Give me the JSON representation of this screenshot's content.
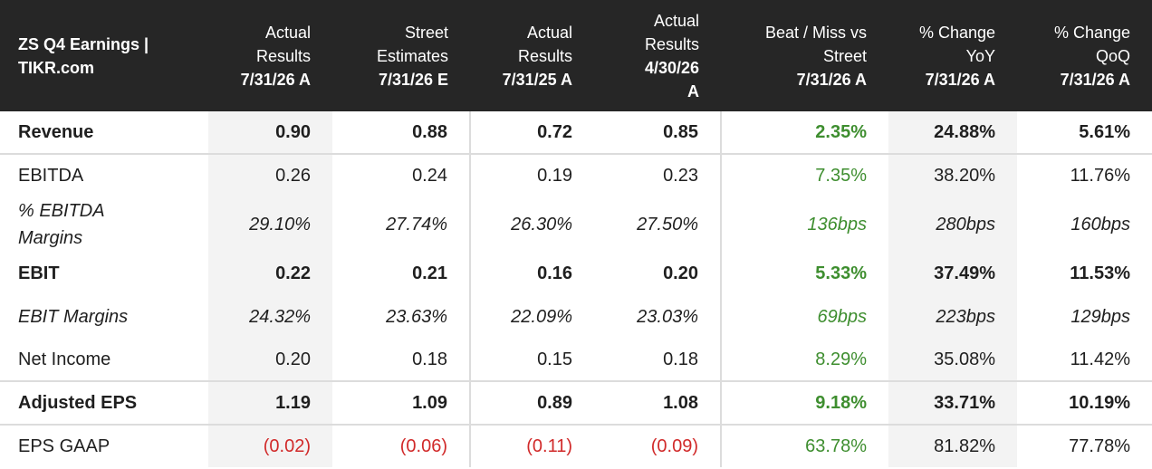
{
  "header": {
    "title_line1": "ZS Q4 Earnings |",
    "title_line2": "TIKR.com",
    "columns": [
      {
        "l1": "Actual",
        "l2": "Results",
        "date": "7/31/26 A"
      },
      {
        "l1": "Street",
        "l2": "Estimates",
        "date": "7/31/26 E"
      },
      {
        "l1": "Actual",
        "l2": "Results",
        "date": "7/31/25 A"
      },
      {
        "l1": "Actual",
        "l2": "Results",
        "date": "4/30/26",
        "date2": "A"
      },
      {
        "l1": "Beat / Miss vs",
        "l2": "Street",
        "date": "7/31/26 A"
      },
      {
        "l1": "% Change",
        "l2": "YoY",
        "date": "7/31/26 A"
      },
      {
        "l1": "% Change",
        "l2": "QoQ",
        "date": "7/31/26 A"
      }
    ]
  },
  "rows": [
    {
      "label": "Revenue",
      "values": [
        "0.90",
        "0.88",
        "0.72",
        "0.85",
        "2.35%",
        "24.88%",
        "5.61%"
      ]
    },
    {
      "label": "EBITDA",
      "values": [
        "0.26",
        "0.24",
        "0.19",
        "0.23",
        "7.35%",
        "38.20%",
        "11.76%"
      ]
    },
    {
      "label_l1": "% EBITDA",
      "label_l2": "Margins",
      "values": [
        "29.10%",
        "27.74%",
        "26.30%",
        "27.50%",
        "136bps",
        "280bps",
        "160bps"
      ]
    },
    {
      "label": "EBIT",
      "values": [
        "0.22",
        "0.21",
        "0.16",
        "0.20",
        "5.33%",
        "37.49%",
        "11.53%"
      ]
    },
    {
      "label": "EBIT Margins",
      "values": [
        "24.32%",
        "23.63%",
        "22.09%",
        "23.03%",
        "69bps",
        "223bps",
        "129bps"
      ]
    },
    {
      "label": "Net Income",
      "values": [
        "0.20",
        "0.18",
        "0.15",
        "0.18",
        "8.29%",
        "35.08%",
        "11.42%"
      ]
    },
    {
      "label": "Adjusted EPS",
      "values": [
        "1.19",
        "1.09",
        "0.89",
        "1.08",
        "9.18%",
        "33.71%",
        "10.19%"
      ]
    },
    {
      "label": "EPS GAAP",
      "values": [
        "(0.02)",
        "(0.06)",
        "(0.11)",
        "(0.09)",
        "63.78%",
        "81.82%",
        "77.78%"
      ]
    }
  ],
  "colors": {
    "header_bg": "#262626",
    "positive": "#3e8e2f",
    "negative": "#d12a2a",
    "shade": "#f3f3f3"
  }
}
